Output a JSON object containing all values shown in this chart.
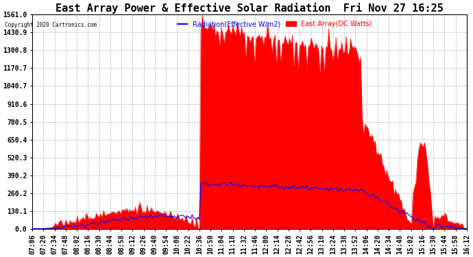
{
  "title": "East Array Power & Effective Solar Radiation  Fri Nov 27 16:25",
  "copyright": "Copyright 2020 Cartronics.com",
  "legend_blue": "Radiation(Effective W/m2)",
  "legend_red": "East Array(DC Watts)",
  "ymin": 0.0,
  "ymax": 1561.0,
  "ytick_values": [
    0.0,
    130.1,
    260.2,
    390.2,
    520.3,
    650.4,
    780.5,
    910.6,
    1040.7,
    1170.7,
    1300.8,
    1430.9,
    1561.0
  ],
  "background_color": "#ffffff",
  "plot_bg_color": "#ffffff",
  "grid_color": "#aaaaaa",
  "red_color": "#ff0000",
  "blue_color": "#0000ff",
  "title_fontsize": 11,
  "tick_fontsize": 7,
  "x_labels": [
    "07:06",
    "07:20",
    "07:34",
    "07:48",
    "08:02",
    "08:16",
    "08:30",
    "08:44",
    "08:58",
    "09:12",
    "09:26",
    "09:40",
    "09:54",
    "10:08",
    "10:22",
    "10:36",
    "10:50",
    "11:04",
    "11:18",
    "11:32",
    "11:46",
    "12:00",
    "12:14",
    "12:28",
    "12:42",
    "12:56",
    "13:10",
    "13:24",
    "13:38",
    "13:52",
    "14:06",
    "14:20",
    "14:34",
    "14:48",
    "15:02",
    "15:16",
    "15:30",
    "15:44",
    "15:58",
    "16:12"
  ]
}
